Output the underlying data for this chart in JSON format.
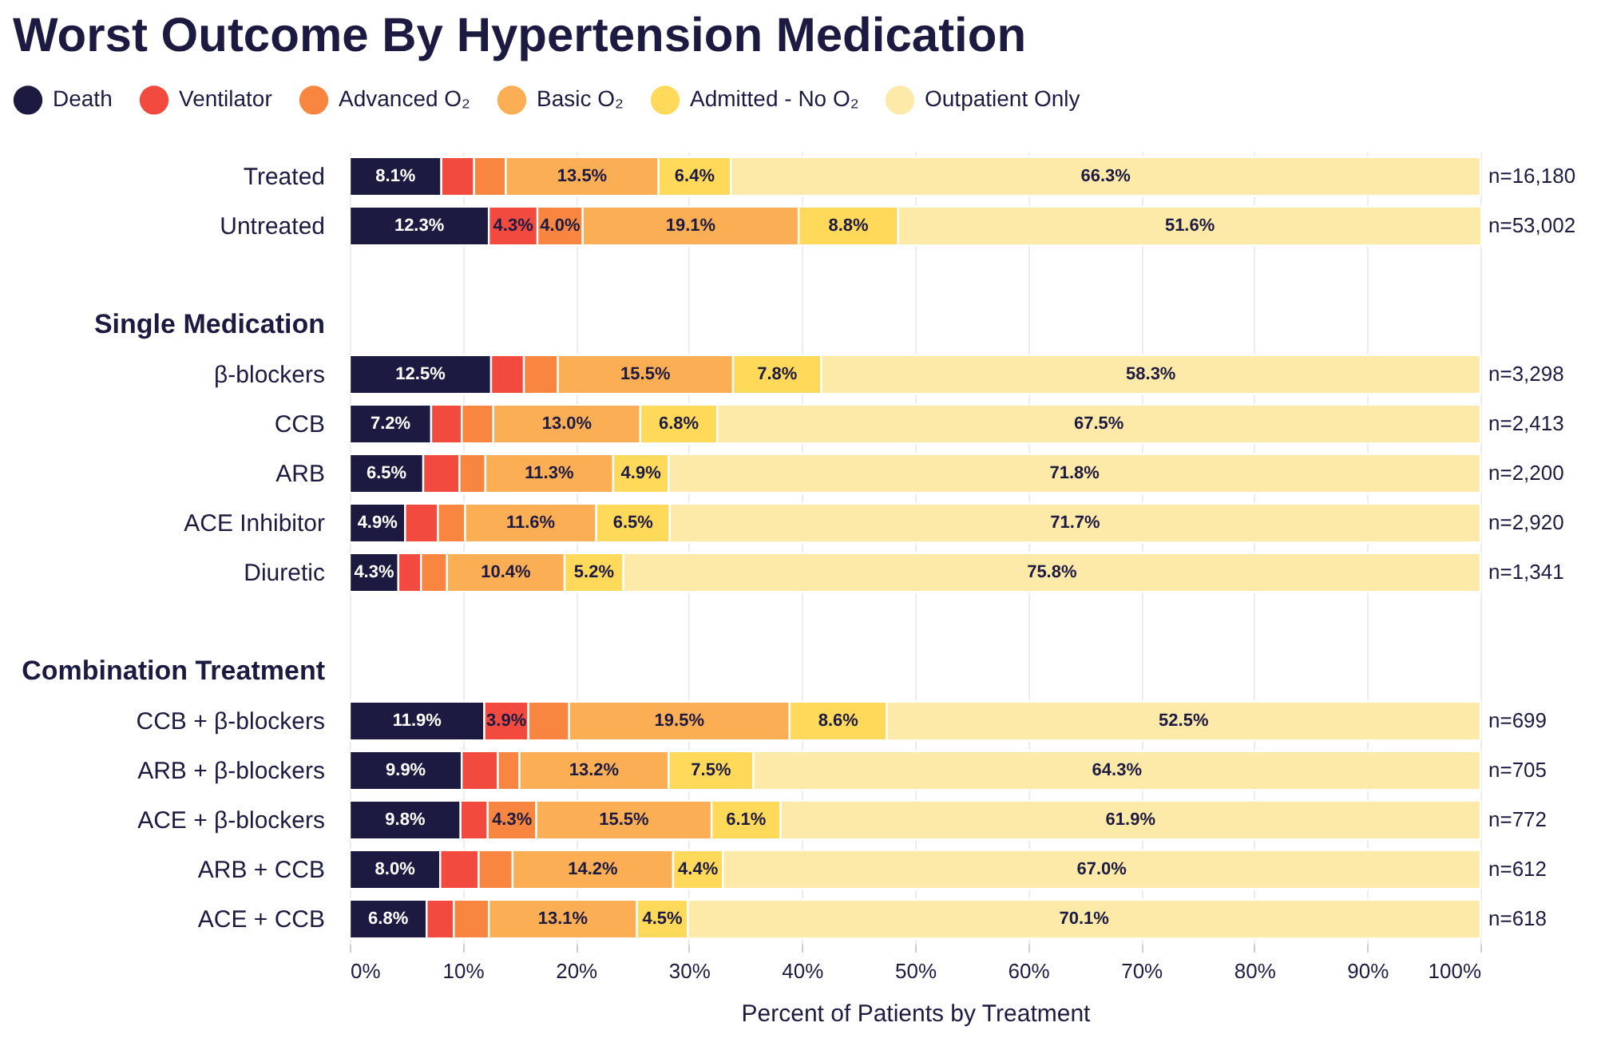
{
  "chart_data": {
    "type": "bar",
    "orientation": "horizontal",
    "stacked": true,
    "title": "Worst Outcome By Hypertension Medication",
    "xlabel": "Percent of Patients by Treatment",
    "categories": [
      "Treated",
      "Untreated",
      null,
      "Single Medication",
      "β-blockers",
      "CCB",
      "ARB",
      "ACE Inhibitor",
      "Diuretic",
      null,
      "Combination Treatment",
      "CCB + β-blockers",
      "ARB + β-blockers",
      "ACE + β-blockers",
      "ARB + CCB",
      "ACE + CCB"
    ],
    "series": [
      {
        "name": "Death",
        "color": "#1c1a40",
        "values": [
          8.1,
          12.3,
          null,
          null,
          12.5,
          7.2,
          6.5,
          4.9,
          4.3,
          null,
          null,
          11.9,
          9.9,
          9.8,
          8.0,
          6.8
        ],
        "value_labels": [
          "8.1%",
          "12.3%",
          null,
          null,
          "12.5%",
          "7.2%",
          "6.5%",
          "4.9%",
          "4.3%",
          null,
          null,
          "11.9%",
          "9.9%",
          "9.8%",
          "8.0%",
          "6.8%"
        ]
      },
      {
        "name": "Ventilator",
        "color": "#f34a40",
        "values": [
          2.9,
          4.3,
          null,
          null,
          2.9,
          2.7,
          3.2,
          2.9,
          2.0,
          null,
          null,
          3.9,
          3.2,
          2.4,
          3.4,
          2.4
        ],
        "value_labels": [
          null,
          "4.3%",
          null,
          null,
          null,
          null,
          null,
          null,
          null,
          null,
          null,
          "3.9%",
          null,
          null,
          null,
          null
        ]
      },
      {
        "name": "Advanced O₂",
        "color": "#f88640",
        "values": [
          2.8,
          4.0,
          null,
          null,
          3.0,
          2.8,
          2.3,
          2.4,
          2.3,
          null,
          null,
          3.6,
          1.9,
          4.3,
          3.0,
          3.1
        ],
        "value_labels": [
          null,
          "4.0%",
          null,
          null,
          null,
          null,
          null,
          null,
          null,
          null,
          null,
          null,
          null,
          "4.3%",
          null,
          null
        ]
      },
      {
        "name": "Basic O₂",
        "color": "#fcae55",
        "values": [
          13.5,
          19.1,
          null,
          null,
          15.5,
          13.0,
          11.3,
          11.6,
          10.4,
          null,
          null,
          19.5,
          13.2,
          15.5,
          14.2,
          13.1
        ],
        "value_labels": [
          "13.5%",
          "19.1%",
          null,
          null,
          "15.5%",
          "13.0%",
          "11.3%",
          "11.6%",
          "10.4%",
          null,
          null,
          "19.5%",
          "13.2%",
          "15.5%",
          "14.2%",
          "13.1%"
        ]
      },
      {
        "name": "Admitted - No O₂",
        "color": "#fed95a",
        "values": [
          6.4,
          8.8,
          null,
          null,
          7.8,
          6.8,
          4.9,
          6.5,
          5.2,
          null,
          null,
          8.6,
          7.5,
          6.1,
          4.4,
          4.5
        ],
        "value_labels": [
          "6.4%",
          "8.8%",
          null,
          null,
          "7.8%",
          "6.8%",
          "4.9%",
          "6.5%",
          "5.2%",
          null,
          null,
          "8.6%",
          "7.5%",
          "6.1%",
          "4.4%",
          "4.5%"
        ]
      },
      {
        "name": "Outpatient Only",
        "color": "#fdeaa9",
        "values": [
          66.3,
          51.6,
          null,
          null,
          58.3,
          67.5,
          71.8,
          71.7,
          75.8,
          null,
          null,
          52.5,
          64.3,
          61.9,
          67.0,
          70.1
        ],
        "value_labels": [
          "66.3%",
          "51.6%",
          null,
          null,
          "58.3%",
          "67.5%",
          "71.8%",
          "71.7%",
          "75.8%",
          null,
          null,
          "52.5%",
          "64.3%",
          "61.9%",
          "67.0%",
          "70.1%"
        ]
      }
    ],
    "xlim": [
      0,
      100
    ],
    "xticks": [
      {
        "value": 0,
        "label": "0%"
      },
      {
        "value": 10,
        "label": "10%"
      },
      {
        "value": 20,
        "label": "20%"
      },
      {
        "value": 30,
        "label": "30%"
      },
      {
        "value": 40,
        "label": "40%"
      },
      {
        "value": 50,
        "label": "50%"
      },
      {
        "value": 60,
        "label": "60%"
      },
      {
        "value": 70,
        "label": "70%"
      },
      {
        "value": 80,
        "label": "80%"
      },
      {
        "value": 90,
        "label": "90%"
      },
      {
        "value": 100,
        "label": "100%"
      }
    ],
    "grid": "x",
    "legend": "top left",
    "annotations": [
      "n=16,180",
      "n=53,002",
      "n=3,298",
      "n=2,413",
      "n=2,200",
      "n=2,920",
      "n=1,341",
      "n=699",
      "n=705",
      "n=772",
      "n=612",
      "n=618"
    ]
  }
}
